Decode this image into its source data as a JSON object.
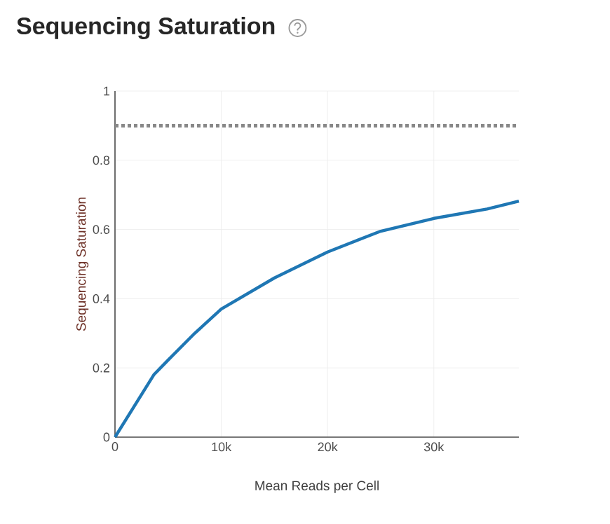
{
  "chart_data": {
    "type": "line",
    "title": "Sequencing Saturation",
    "xlabel": "Mean Reads per Cell",
    "ylabel": "Sequencing Saturation",
    "x": [
      0,
      3650,
      5070,
      7500,
      10000,
      15000,
      20000,
      25000,
      30000,
      35000,
      38000
    ],
    "series": [
      {
        "color": "#1f77b4",
        "values": [
          0,
          0.18,
          0.225,
          0.3,
          0.37,
          0.46,
          0.535,
          0.595,
          0.632,
          0.659,
          0.682
        ]
      }
    ],
    "xlim": [
      0,
      38000
    ],
    "ylim": [
      0,
      1
    ],
    "xticks": [
      {
        "value": 0,
        "label": "0"
      },
      {
        "value": 10000,
        "label": "10k"
      },
      {
        "value": 20000,
        "label": "20k"
      },
      {
        "value": 30000,
        "label": "30k"
      }
    ],
    "yticks": [
      0,
      0.2,
      0.4,
      0.6,
      0.8,
      1
    ],
    "ref_lines": [
      {
        "axis": "y",
        "value": 0.9,
        "color": "#888888",
        "line_style": "dotted"
      }
    ],
    "grid": true,
    "marker": "none",
    "line_style": "solid"
  }
}
